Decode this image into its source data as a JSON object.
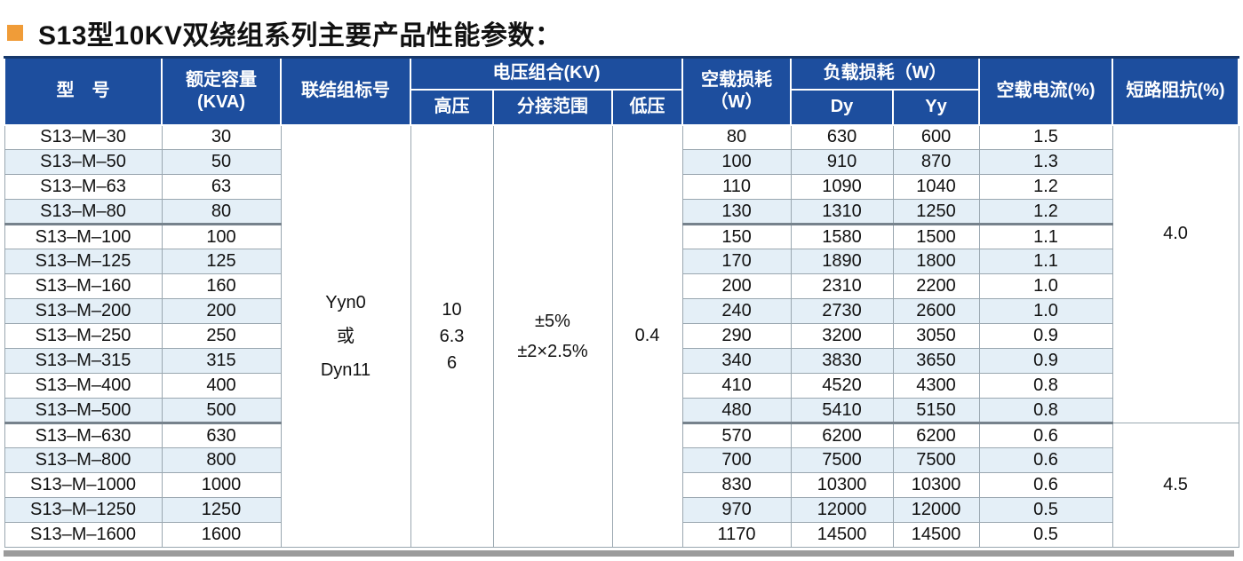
{
  "title": {
    "text": "S13型10KV双绕组系列主要产品性能参数："
  },
  "colors": {
    "header-bg": "#1d4e9e",
    "header-text": "#ffffff",
    "header-top": "#16386b",
    "row-band": "#e4eff7",
    "grid-line": "#9aa7b0",
    "group-line": "#76828c",
    "bottom-bar": "#9b9b9b",
    "bullet": "#f09c38",
    "text": "#111111"
  },
  "table": {
    "headers": {
      "model": "型　号",
      "capacity": "额定容量\n(KVA)",
      "connection": "联结组标号",
      "voltage_group": "电压组合(KV)",
      "hv": "高压",
      "tap_range": "分接范围",
      "lv": "低压",
      "no_load_loss": "空载损耗\n（W）",
      "load_loss": "负载损耗（W）",
      "dy": "Dy",
      "yy": "Yy",
      "no_load_current": "空载电流(%)",
      "impedance": "短路阻抗(%)"
    },
    "merged": {
      "connection": "Yyn0\n或\nDyn11",
      "hv": "10\n6.3\n6",
      "tap_range": "±5%\n±2×2.5%",
      "lv": "0.4",
      "impedance_groups": [
        {
          "value": "4.0",
          "rows": 12
        },
        {
          "value": "4.5",
          "rows": 5
        }
      ]
    },
    "group_end_rows": [
      3,
      11
    ],
    "rows": [
      {
        "model": "S13–M–30",
        "capacity": "30",
        "no_load_loss": "80",
        "dy": "630",
        "yy": "600",
        "no_load_current": "1.5"
      },
      {
        "model": "S13–M–50",
        "capacity": "50",
        "no_load_loss": "100",
        "dy": "910",
        "yy": "870",
        "no_load_current": "1.3"
      },
      {
        "model": "S13–M–63",
        "capacity": "63",
        "no_load_loss": "110",
        "dy": "1090",
        "yy": "1040",
        "no_load_current": "1.2"
      },
      {
        "model": "S13–M–80",
        "capacity": "80",
        "no_load_loss": "130",
        "dy": "1310",
        "yy": "1250",
        "no_load_current": "1.2"
      },
      {
        "model": "S13–M–100",
        "capacity": "100",
        "no_load_loss": "150",
        "dy": "1580",
        "yy": "1500",
        "no_load_current": "1.1"
      },
      {
        "model": "S13–M–125",
        "capacity": "125",
        "no_load_loss": "170",
        "dy": "1890",
        "yy": "1800",
        "no_load_current": "1.1"
      },
      {
        "model": "S13–M–160",
        "capacity": "160",
        "no_load_loss": "200",
        "dy": "2310",
        "yy": "2200",
        "no_load_current": "1.0"
      },
      {
        "model": "S13–M–200",
        "capacity": "200",
        "no_load_loss": "240",
        "dy": "2730",
        "yy": "2600",
        "no_load_current": "1.0"
      },
      {
        "model": "S13–M–250",
        "capacity": "250",
        "no_load_loss": "290",
        "dy": "3200",
        "yy": "3050",
        "no_load_current": "0.9"
      },
      {
        "model": "S13–M–315",
        "capacity": "315",
        "no_load_loss": "340",
        "dy": "3830",
        "yy": "3650",
        "no_load_current": "0.9"
      },
      {
        "model": "S13–M–400",
        "capacity": "400",
        "no_load_loss": "410",
        "dy": "4520",
        "yy": "4300",
        "no_load_current": "0.8"
      },
      {
        "model": "S13–M–500",
        "capacity": "500",
        "no_load_loss": "480",
        "dy": "5410",
        "yy": "5150",
        "no_load_current": "0.8"
      },
      {
        "model": "S13–M–630",
        "capacity": "630",
        "no_load_loss": "570",
        "dy": "6200",
        "yy": "6200",
        "no_load_current": "0.6"
      },
      {
        "model": "S13–M–800",
        "capacity": "800",
        "no_load_loss": "700",
        "dy": "7500",
        "yy": "7500",
        "no_load_current": "0.6"
      },
      {
        "model": "S13–M–1000",
        "capacity": "1000",
        "no_load_loss": "830",
        "dy": "10300",
        "yy": "10300",
        "no_load_current": "0.6"
      },
      {
        "model": "S13–M–1250",
        "capacity": "1250",
        "no_load_loss": "970",
        "dy": "12000",
        "yy": "12000",
        "no_load_current": "0.5"
      },
      {
        "model": "S13–M–1600",
        "capacity": "1600",
        "no_load_loss": "1170",
        "dy": "14500",
        "yy": "14500",
        "no_load_current": "0.5"
      }
    ]
  }
}
